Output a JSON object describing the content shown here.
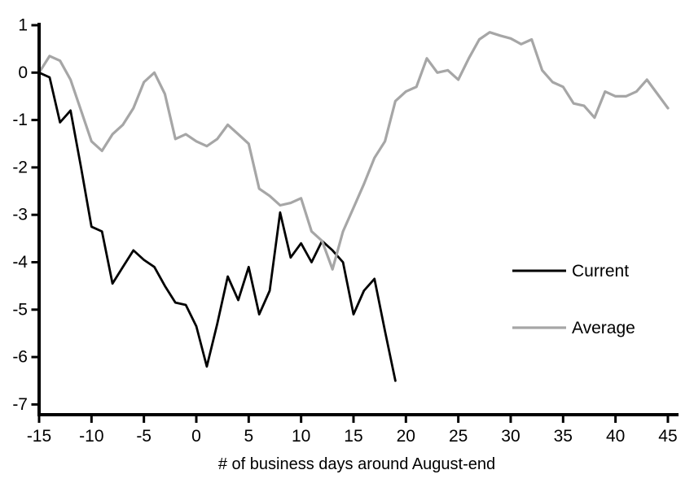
{
  "page": {
    "background": "#ffffff"
  },
  "chart_data": {
    "type": "line",
    "title": "",
    "xlabel": "# of business days around August-end",
    "ylabel": "",
    "xlim": [
      -15,
      45
    ],
    "ylim": [
      -7.2,
      1.05
    ],
    "x_ticks": [
      -15,
      -10,
      -5,
      0,
      5,
      10,
      15,
      20,
      25,
      30,
      35,
      40,
      45
    ],
    "y_ticks": [
      1,
      0,
      -1,
      -2,
      -3,
      -4,
      -5,
      -6,
      -7
    ],
    "grid": false,
    "legend_position": "middle-right",
    "axis_color": "#000000",
    "series": [
      {
        "name": "Current",
        "color": "#000000",
        "stroke_width": 2.8,
        "x_start": -15,
        "step": 1,
        "values": [
          0.0,
          -0.1,
          -1.05,
          -0.8,
          -2.0,
          -3.25,
          -3.35,
          -4.45,
          -4.1,
          -3.75,
          -3.95,
          -4.1,
          -4.5,
          -4.85,
          -4.9,
          -5.35,
          -6.2,
          -5.3,
          -4.3,
          -4.8,
          -4.1,
          -5.1,
          -4.6,
          -2.95,
          -3.9,
          -3.6,
          -4.0,
          -3.55,
          -3.75,
          -4.0,
          -5.1,
          -4.6,
          -4.35,
          -5.45,
          -6.5
        ]
      },
      {
        "name": "Average",
        "color": "#a6a6a6",
        "stroke_width": 3.2,
        "x_start": -15,
        "step": 1,
        "values": [
          0.0,
          0.35,
          0.25,
          -0.15,
          -0.8,
          -1.45,
          -1.65,
          -1.3,
          -1.1,
          -0.75,
          -0.2,
          0.0,
          -0.45,
          -1.4,
          -1.3,
          -1.45,
          -1.55,
          -1.4,
          -1.1,
          -1.3,
          -1.5,
          -2.45,
          -2.6,
          -2.8,
          -2.75,
          -2.65,
          -3.35,
          -3.55,
          -4.15,
          -3.35,
          -2.85,
          -2.35,
          -1.8,
          -1.45,
          -0.6,
          -0.4,
          -0.3,
          0.3,
          0.0,
          0.05,
          -0.15,
          0.3,
          0.7,
          0.85,
          0.78,
          0.72,
          0.6,
          0.7,
          0.05,
          -0.2,
          -0.3,
          -0.65,
          -0.7,
          -0.95,
          -0.4,
          -0.5,
          -0.5,
          -0.4,
          -0.15,
          -0.45,
          -0.75
        ]
      }
    ]
  }
}
